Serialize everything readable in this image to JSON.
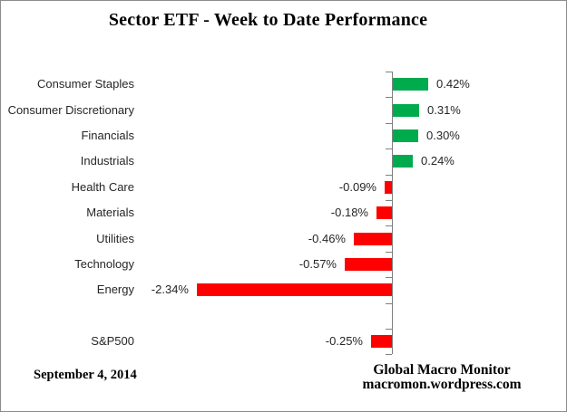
{
  "title": "Sector ETF - Week to Date Performance",
  "footer": {
    "date": "September 4, 2014",
    "credit_line1": "Global Macro Monitor",
    "credit_line2": "macromon.wordpress.com"
  },
  "colors": {
    "positive_bar": "#00AB4E",
    "negative_bar": "#FF0000",
    "axis": "#808080",
    "label_text": "#262626"
  },
  "chart_data": {
    "type": "bar",
    "orientation": "horizontal",
    "title": "Sector ETF - Week to Date Performance",
    "categories": [
      "Consumer Staples",
      "Consumer Discretionary",
      "Financials",
      "Industrials",
      "Health Care",
      "Materials",
      "Utilities",
      "Technology",
      "Energy",
      "",
      "S&P500"
    ],
    "values": [
      0.42,
      0.31,
      0.3,
      0.24,
      -0.09,
      -0.18,
      -0.46,
      -0.57,
      -2.34,
      null,
      -0.25
    ],
    "value_labels": [
      "0.42%",
      "0.31%",
      "0.30%",
      "0.24%",
      "-0.09%",
      "-0.18%",
      "-0.46%",
      "-0.57%",
      "-2.34%",
      "",
      "-0.25%"
    ],
    "unit": "percent",
    "baseline": 0,
    "grid": false,
    "legend": false,
    "value_label_position": "outside-end"
  }
}
